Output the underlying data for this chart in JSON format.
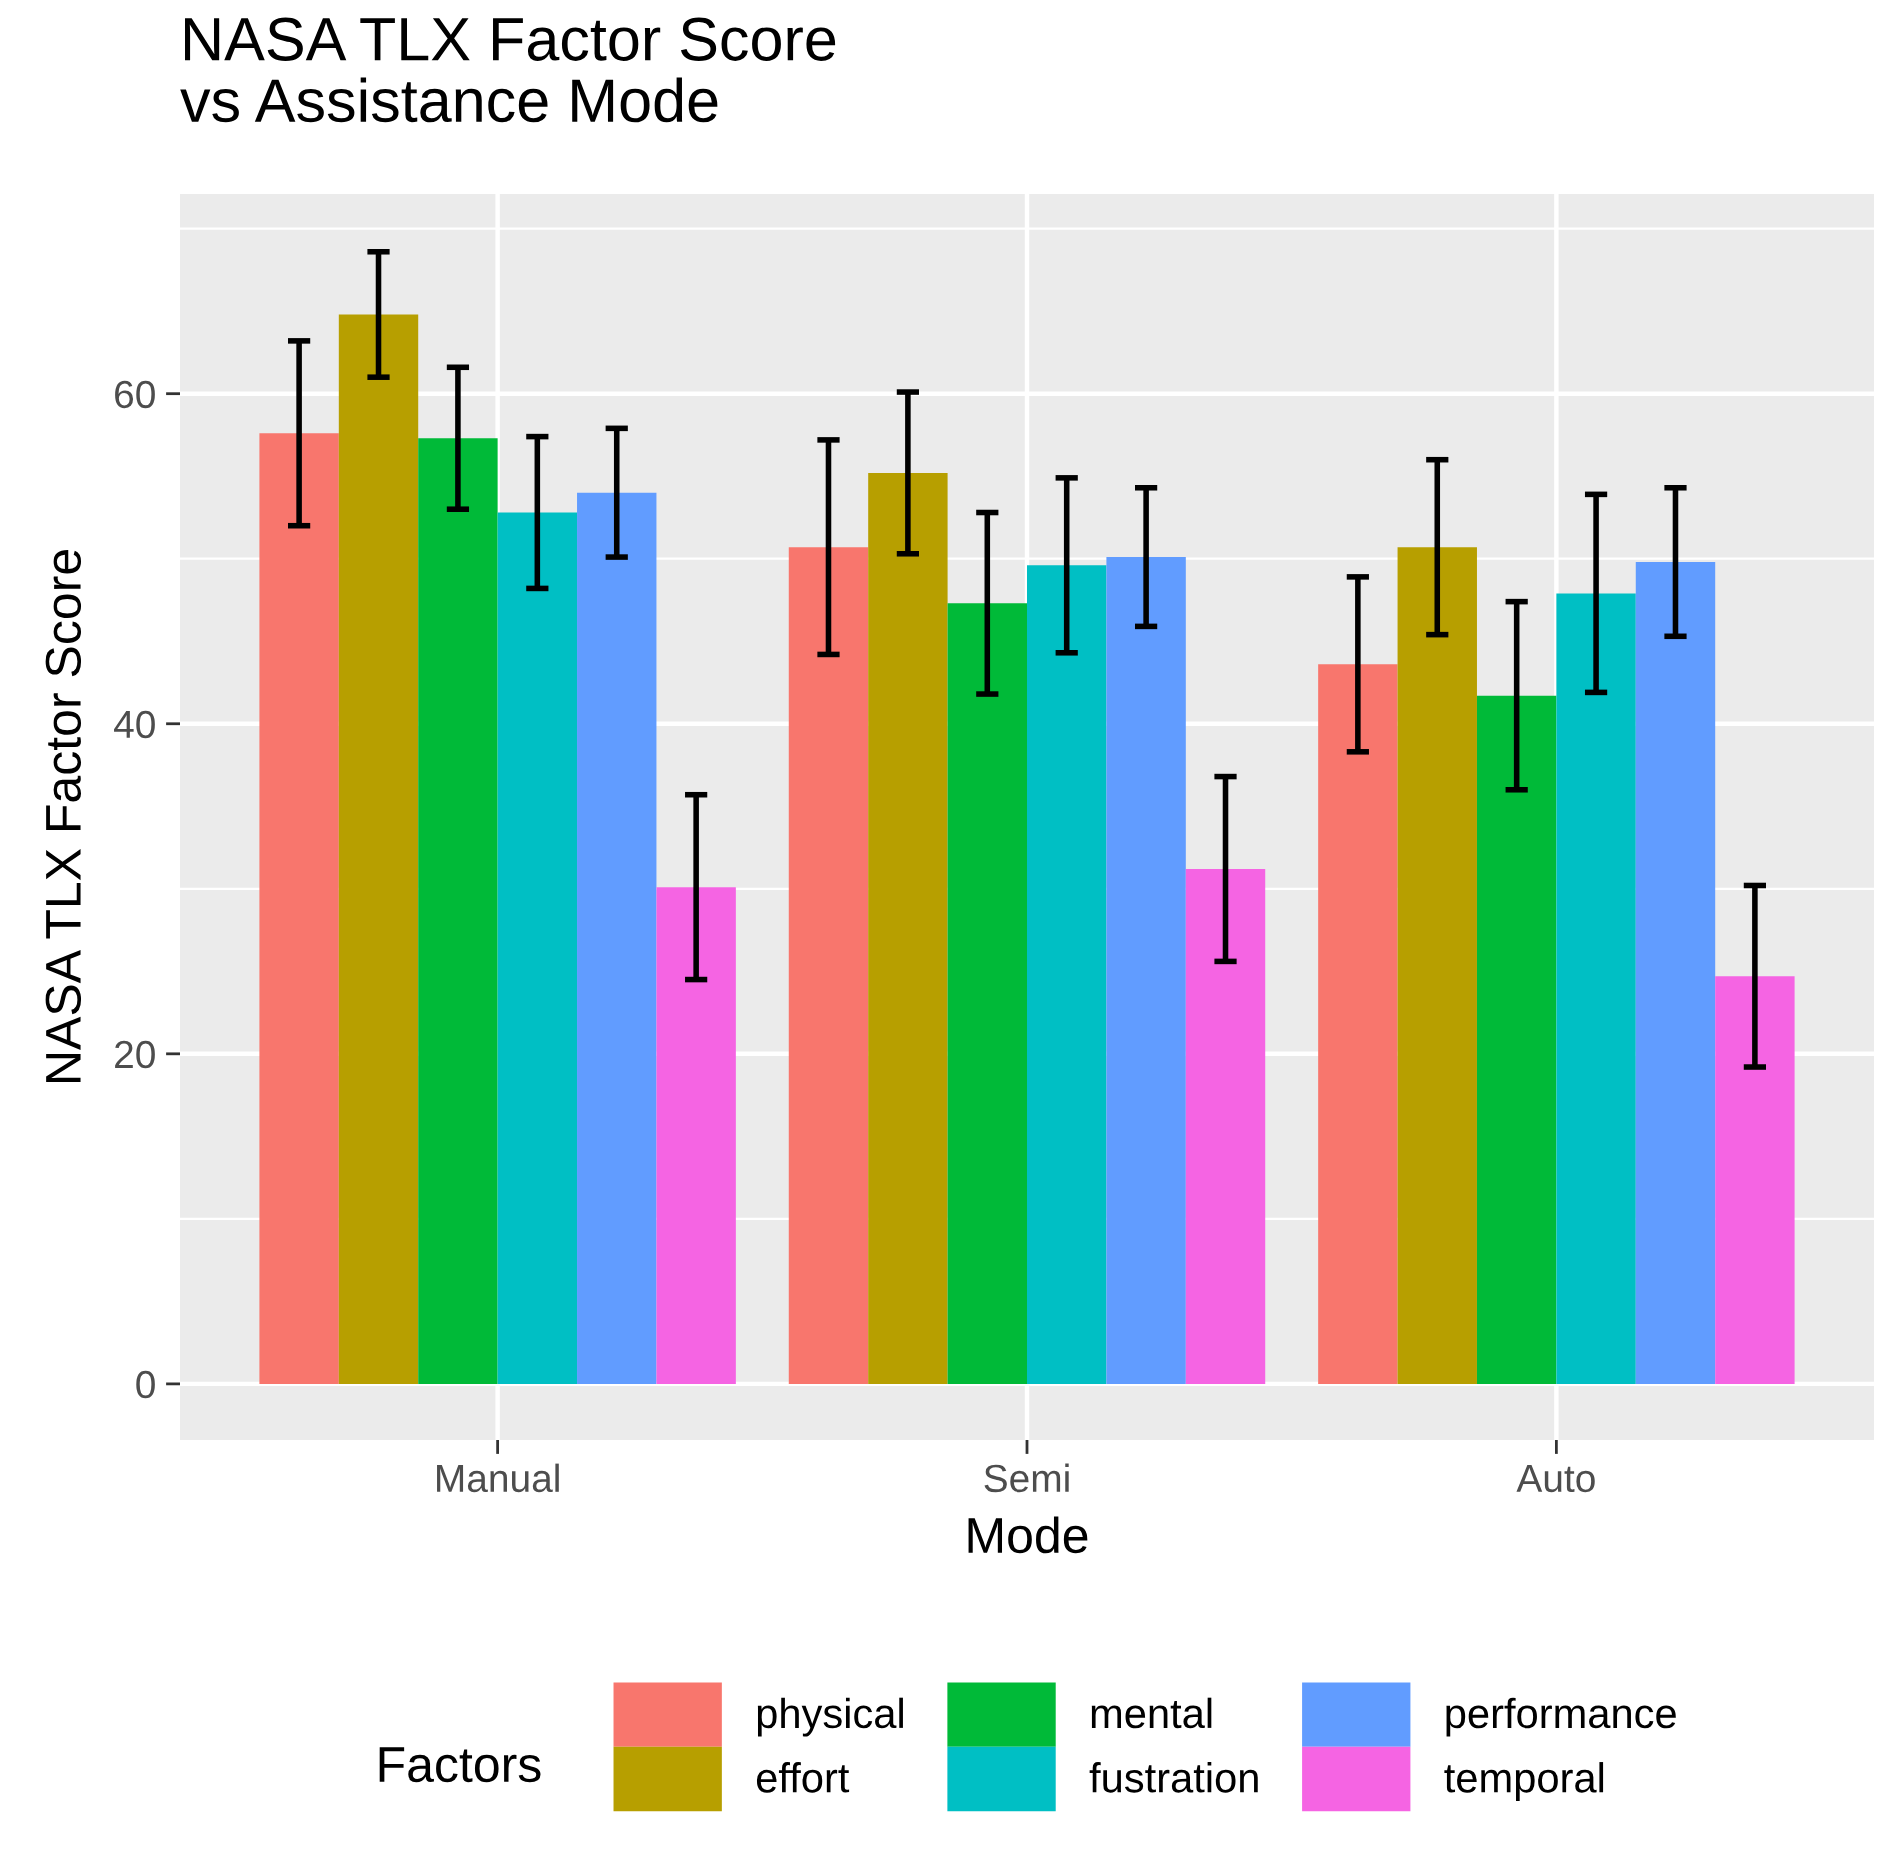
{
  "chart_data": {
    "type": "bar",
    "title": "NASA TLX Factor Score\nvs Assistance Mode",
    "xlabel": "Mode",
    "ylabel": "NASA TLX Factor Score",
    "legend_title": "Factors",
    "categories": [
      "Manual",
      "Semi",
      "Auto"
    ],
    "series": [
      {
        "name": "physical",
        "color": "#f8766d",
        "values": [
          57.6,
          50.7,
          43.6
        ],
        "errors": [
          5.6,
          6.5,
          5.3
        ]
      },
      {
        "name": "effort",
        "color": "#b79f00",
        "values": [
          64.8,
          55.2,
          50.7
        ],
        "errors": [
          3.8,
          4.9,
          5.3
        ]
      },
      {
        "name": "mental",
        "color": "#00ba38",
        "values": [
          57.3,
          47.3,
          41.7
        ],
        "errors": [
          4.3,
          5.5,
          5.7
        ]
      },
      {
        "name": "fustration",
        "color": "#00bfc4",
        "values": [
          52.8,
          49.6,
          47.9
        ],
        "errors": [
          4.6,
          5.3,
          6.0
        ]
      },
      {
        "name": "performance",
        "color": "#619cff",
        "values": [
          54.0,
          50.1,
          49.8
        ],
        "errors": [
          3.9,
          4.2,
          4.5
        ]
      },
      {
        "name": "temporal",
        "color": "#f564e3",
        "values": [
          30.1,
          31.2,
          24.7
        ],
        "errors": [
          5.6,
          5.6,
          5.5
        ]
      }
    ],
    "ylim": [
      -3.4,
      72.1
    ],
    "yticks": [
      0,
      20,
      40,
      60
    ],
    "grid": true,
    "legend": "bottom"
  }
}
